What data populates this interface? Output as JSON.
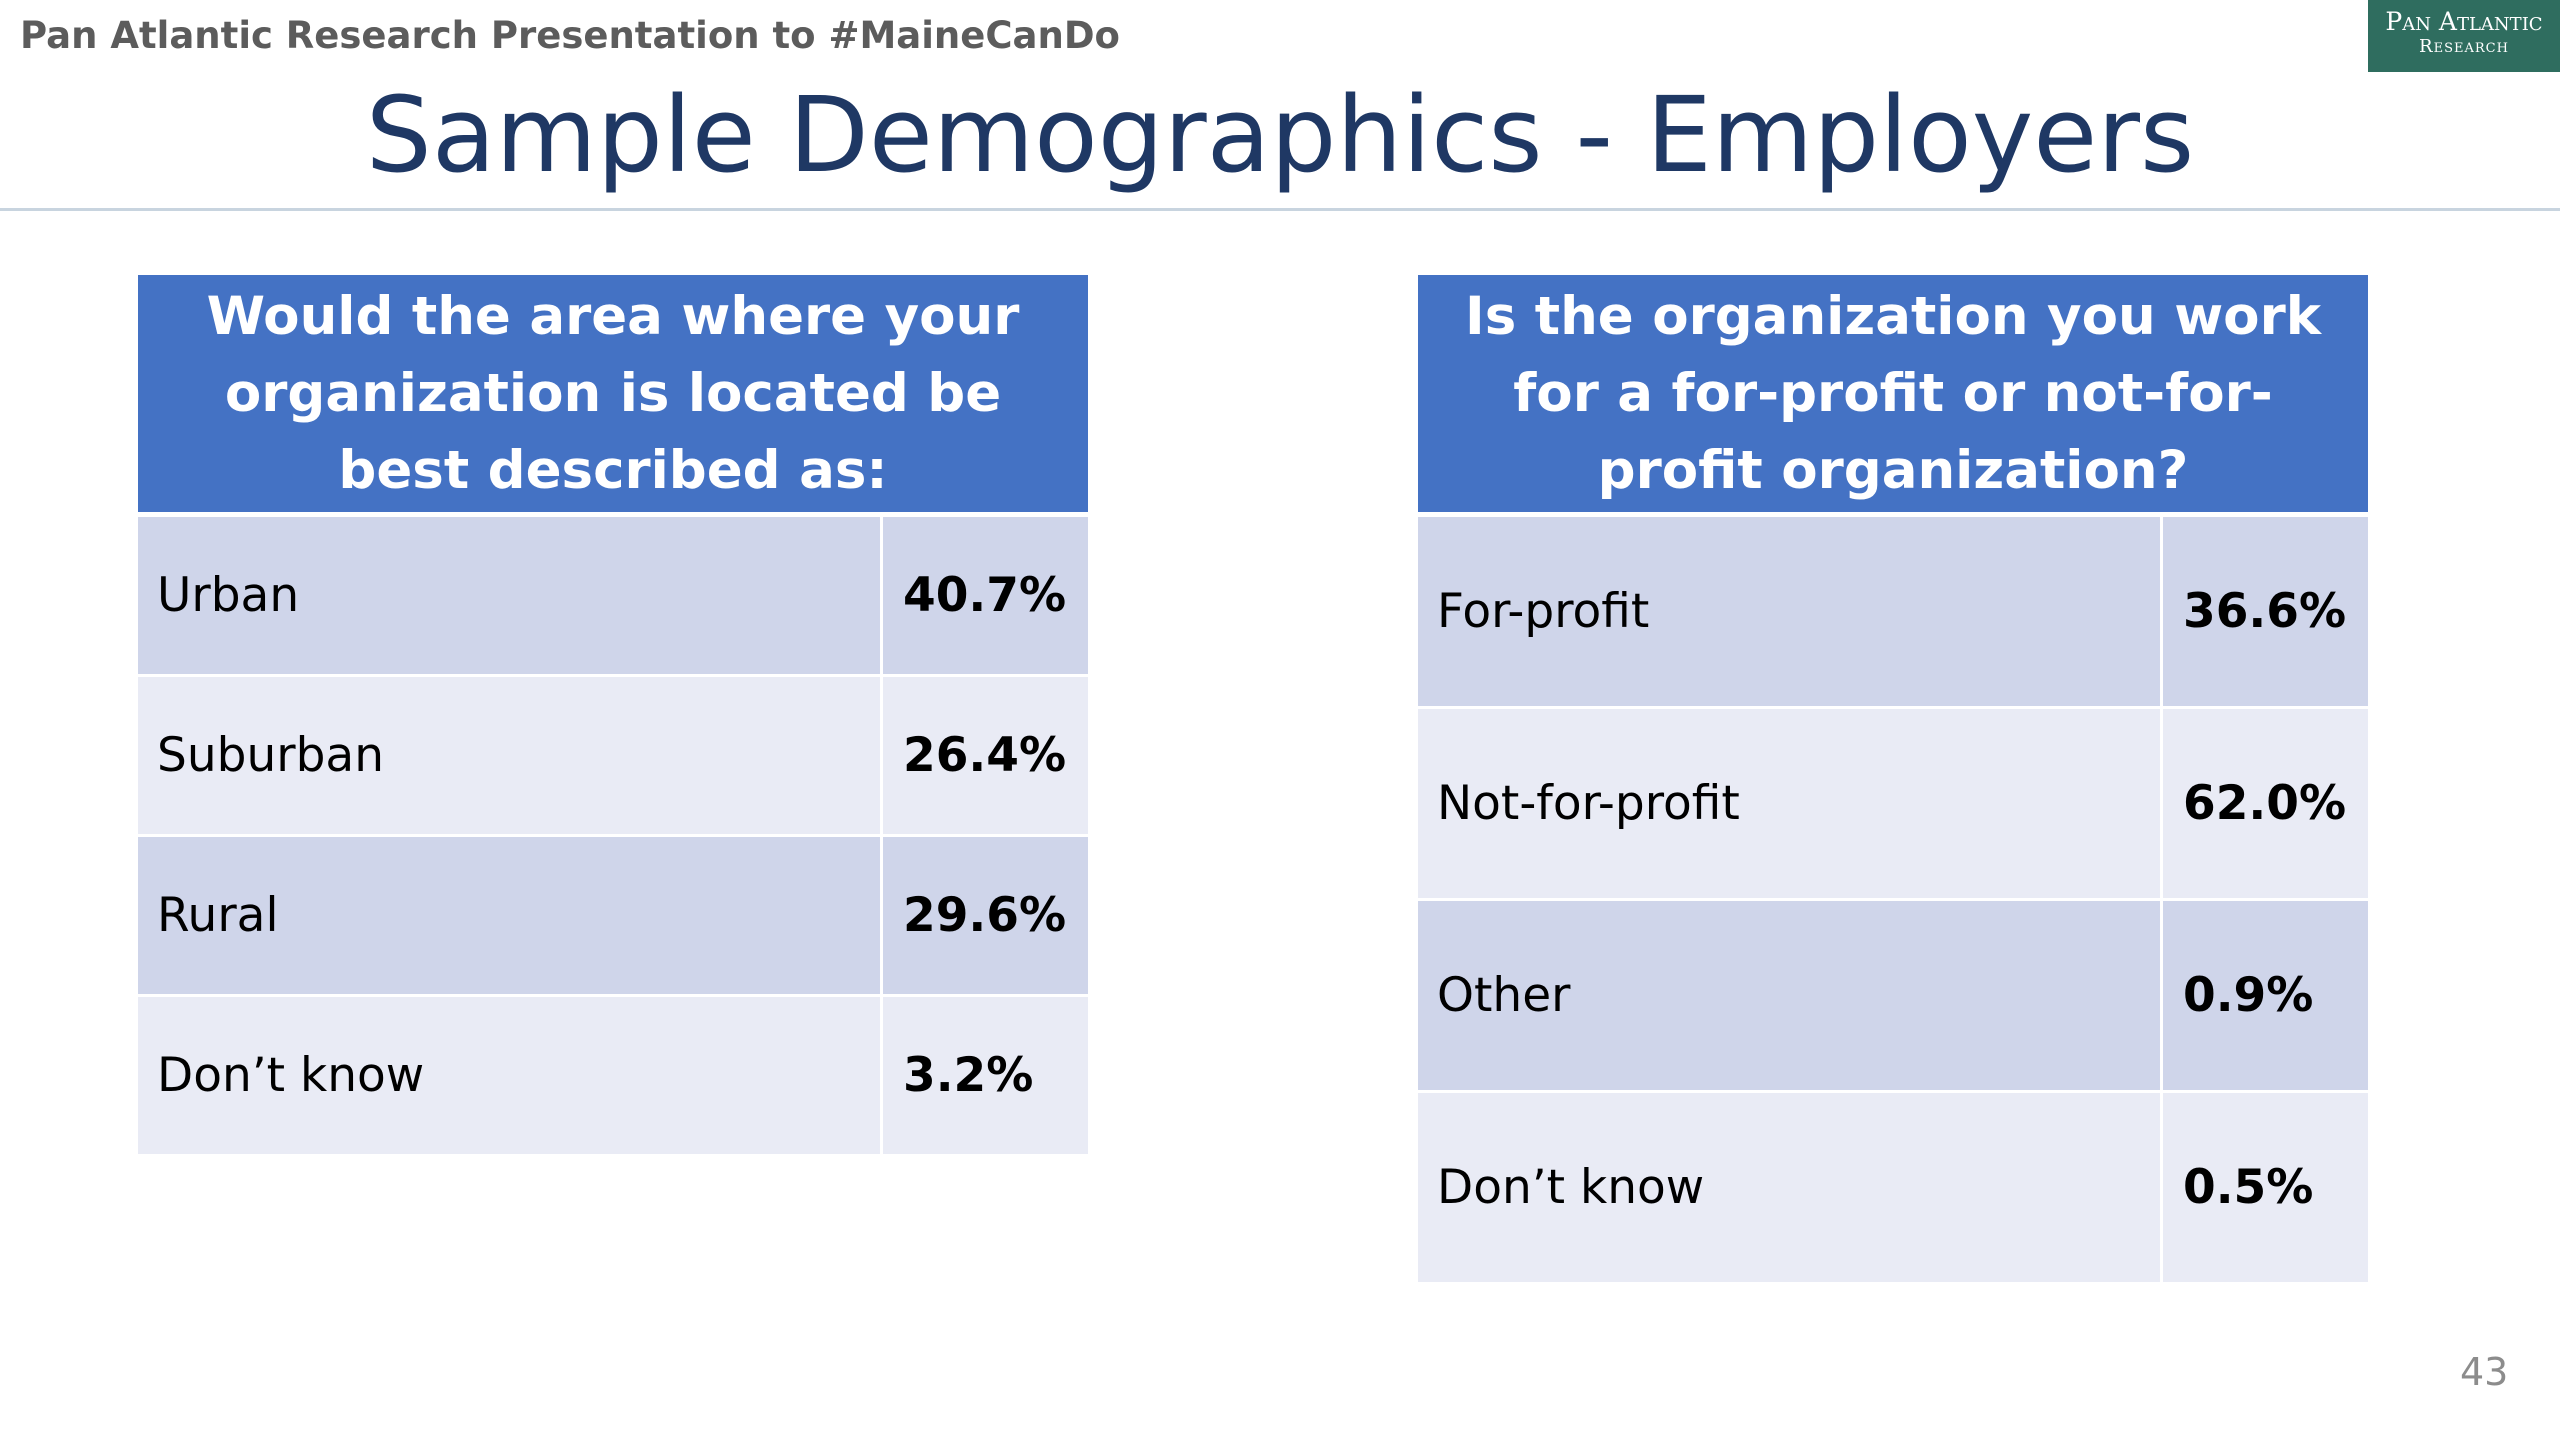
{
  "header": {
    "presentation_label": "Pan Atlantic Research Presentation to #MaineCanDo",
    "logo_line1": "Pan Atlantic",
    "logo_line2": "Research"
  },
  "title": "Sample Demographics - Employers",
  "tables": [
    {
      "question": "Would the area where your organization is located be best described as:",
      "rows": [
        {
          "label": "Urban",
          "value": "40.7%"
        },
        {
          "label": "Suburban",
          "value": "26.4%"
        },
        {
          "label": "Rural",
          "value": "29.6%"
        },
        {
          "label": "Don’t know",
          "value": "3.2%"
        }
      ]
    },
    {
      "question": "Is the organization you work for a for-profit or not-for-profit organization?",
      "rows": [
        {
          "label": "For-profit",
          "value": "36.6%"
        },
        {
          "label": "Not-for-profit",
          "value": "62.0%"
        },
        {
          "label": "Other",
          "value": "0.9%"
        },
        {
          "label": "Don’t know",
          "value": "0.5%"
        }
      ]
    }
  ],
  "page_number": "43",
  "colors": {
    "header_fill": "#4472c4",
    "row_dark": "#cfd5ea",
    "row_light": "#e9ebf5",
    "title_color": "#1f3864",
    "logo_fill": "#2f6d5f"
  }
}
